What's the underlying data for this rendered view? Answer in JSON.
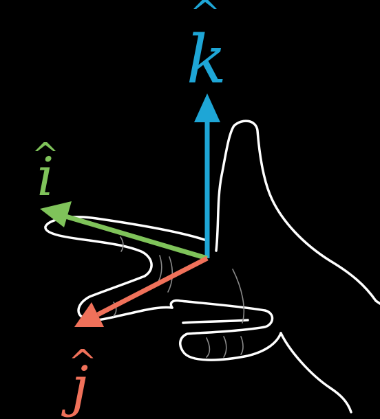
{
  "background_color": "#000000",
  "hand": {
    "outline_color": "#ffffff",
    "crease_color": "#8a8a8a"
  },
  "vectors": {
    "k": {
      "letter": "k",
      "hat": "^",
      "color": "#1ea6d6"
    },
    "i": {
      "letter": "i",
      "hat": "^",
      "color": "#7fc35a"
    },
    "j": {
      "letter": "j",
      "hat": "^",
      "color": "#f0715a"
    }
  }
}
